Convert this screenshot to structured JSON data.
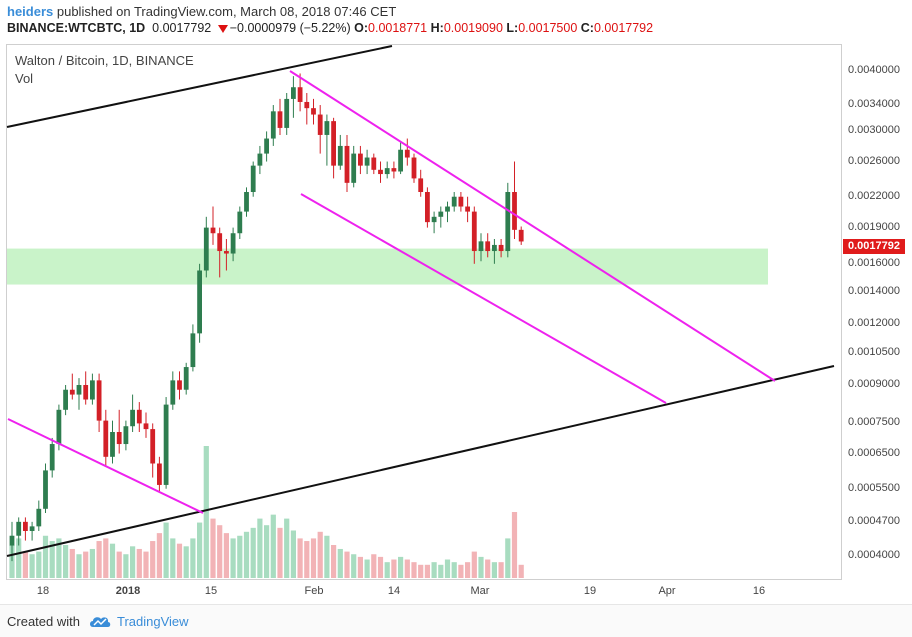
{
  "header": {
    "user": "heiders",
    "published_text": " published on TradingView.com, March 08, 2018 07:46 CET",
    "symbol": "BINANCE:WTCBTC, 1D",
    "price": "0.0017792",
    "change": "−0.0000979 (−5.22%)",
    "o_label": "O:",
    "o_value": "0.0018771",
    "h_label": "H:",
    "h_value": "0.0019090",
    "l_label": "L:",
    "l_value": "0.0017500",
    "c_label": "C:",
    "c_value": "0.0017792"
  },
  "legend": {
    "title": "Walton / Bitcoin, 1D, BINANCE",
    "vol": "Vol"
  },
  "price_tag": "0.0017792",
  "y_axis": [
    "0.0040000",
    "0.0034000",
    "0.0030000",
    "0.0026000",
    "0.0022000",
    "0.0019000",
    "0.0016000",
    "0.0014000",
    "0.0012000",
    "0.0010500",
    "0.0009000",
    "0.0007500",
    "0.0006500",
    "0.0005500",
    "0.0004700",
    "0.0004000"
  ],
  "x_axis": [
    {
      "label": "18",
      "bold": false
    },
    {
      "label": "2018",
      "bold": true
    },
    {
      "label": "15",
      "bold": false
    },
    {
      "label": "Feb",
      "bold": false
    },
    {
      "label": "14",
      "bold": false
    },
    {
      "label": "Mar",
      "bold": false
    },
    {
      "label": "19",
      "bold": false
    },
    {
      "label": "Apr",
      "bold": false
    },
    {
      "label": "16",
      "bold": false
    }
  ],
  "footer": {
    "created": "Created with",
    "brand": "TradingView"
  },
  "colors": {
    "up": "#2e7d4f",
    "down": "#d32027",
    "vol_up": "#a8dcc0",
    "vol_down": "#f2b3b6",
    "zone": "#c9f3c9",
    "channel": "#ee22ee",
    "trend": "#111111"
  },
  "chart_data": {
    "type": "candlestick",
    "scale": "log",
    "ylim": [
      0.00036,
      0.0045
    ],
    "candles": [
      [
        0.00042,
        0.00047,
        0.00039,
        0.00044
      ],
      [
        0.00044,
        0.00048,
        0.00042,
        0.00047
      ],
      [
        0.00047,
        0.00048,
        0.00043,
        0.00045
      ],
      [
        0.00045,
        0.00047,
        0.00043,
        0.00046
      ],
      [
        0.00046,
        0.00052,
        0.00045,
        0.0005
      ],
      [
        0.0005,
        0.00062,
        0.00049,
        0.0006
      ],
      [
        0.0006,
        0.0007,
        0.00058,
        0.00068
      ],
      [
        0.00068,
        0.00082,
        0.00066,
        0.0008
      ],
      [
        0.0008,
        0.0009,
        0.00078,
        0.00088
      ],
      [
        0.00088,
        0.00095,
        0.00084,
        0.00086
      ],
      [
        0.00086,
        0.00093,
        0.0008,
        0.0009
      ],
      [
        0.0009,
        0.00096,
        0.00082,
        0.00084
      ],
      [
        0.00084,
        0.00095,
        0.00082,
        0.00092
      ],
      [
        0.00092,
        0.00095,
        0.00072,
        0.00076
      ],
      [
        0.00076,
        0.0008,
        0.00061,
        0.00064
      ],
      [
        0.00064,
        0.00076,
        0.00062,
        0.00072
      ],
      [
        0.00072,
        0.0008,
        0.00065,
        0.00068
      ],
      [
        0.00068,
        0.00076,
        0.00066,
        0.00074
      ],
      [
        0.00074,
        0.00086,
        0.00072,
        0.0008
      ],
      [
        0.0008,
        0.00083,
        0.00072,
        0.00075
      ],
      [
        0.00075,
        0.00079,
        0.0007,
        0.00073
      ],
      [
        0.00073,
        0.00075,
        0.00058,
        0.00062
      ],
      [
        0.00062,
        0.00064,
        0.00054,
        0.00056
      ],
      [
        0.00056,
        0.00085,
        0.00055,
        0.00082
      ],
      [
        0.00082,
        0.00096,
        0.0008,
        0.00092
      ],
      [
        0.00092,
        0.00096,
        0.00084,
        0.00088
      ],
      [
        0.00088,
        0.001,
        0.00086,
        0.00098
      ],
      [
        0.00098,
        0.0012,
        0.00096,
        0.00115
      ],
      [
        0.00115,
        0.0016,
        0.0011,
        0.00155
      ],
      [
        0.00155,
        0.002,
        0.0015,
        0.0019
      ],
      [
        0.0019,
        0.0021,
        0.00175,
        0.00185
      ],
      [
        0.00185,
        0.0019,
        0.0015,
        0.0017
      ],
      [
        0.0017,
        0.0018,
        0.00155,
        0.00168
      ],
      [
        0.00168,
        0.0019,
        0.00162,
        0.00185
      ],
      [
        0.00185,
        0.0021,
        0.0018,
        0.00205
      ],
      [
        0.00205,
        0.0023,
        0.002,
        0.00225
      ],
      [
        0.00225,
        0.0026,
        0.0022,
        0.00255
      ],
      [
        0.00255,
        0.0028,
        0.00245,
        0.0027
      ],
      [
        0.0027,
        0.003,
        0.0026,
        0.0029
      ],
      [
        0.0029,
        0.0034,
        0.0028,
        0.0033
      ],
      [
        0.0033,
        0.0035,
        0.00295,
        0.00305
      ],
      [
        0.00305,
        0.0036,
        0.00295,
        0.0035
      ],
      [
        0.0035,
        0.0039,
        0.0032,
        0.0037
      ],
      [
        0.0037,
        0.00395,
        0.0033,
        0.00345
      ],
      [
        0.00345,
        0.0036,
        0.0031,
        0.00335
      ],
      [
        0.00335,
        0.0035,
        0.0031,
        0.00325
      ],
      [
        0.00325,
        0.0034,
        0.0027,
        0.00295
      ],
      [
        0.00295,
        0.00325,
        0.00255,
        0.00315
      ],
      [
        0.00315,
        0.0032,
        0.0024,
        0.00255
      ],
      [
        0.00255,
        0.00295,
        0.0025,
        0.0028
      ],
      [
        0.0028,
        0.00295,
        0.00225,
        0.00235
      ],
      [
        0.00235,
        0.0028,
        0.0023,
        0.0027
      ],
      [
        0.0027,
        0.0028,
        0.00245,
        0.00255
      ],
      [
        0.00255,
        0.00275,
        0.00245,
        0.00265
      ],
      [
        0.00265,
        0.0027,
        0.00245,
        0.0025
      ],
      [
        0.0025,
        0.0026,
        0.00235,
        0.00245
      ],
      [
        0.00245,
        0.0026,
        0.0024,
        0.00252
      ],
      [
        0.00252,
        0.0026,
        0.0024,
        0.00248
      ],
      [
        0.00248,
        0.00285,
        0.00245,
        0.00275
      ],
      [
        0.00275,
        0.0029,
        0.00255,
        0.00265
      ],
      [
        0.00265,
        0.0027,
        0.00235,
        0.0024
      ],
      [
        0.0024,
        0.0025,
        0.0022,
        0.00225
      ],
      [
        0.00225,
        0.0023,
        0.0019,
        0.00195
      ],
      [
        0.00195,
        0.00205,
        0.00185,
        0.002
      ],
      [
        0.002,
        0.0021,
        0.0019,
        0.00205
      ],
      [
        0.00205,
        0.00215,
        0.00195,
        0.0021
      ],
      [
        0.0021,
        0.00225,
        0.00205,
        0.0022
      ],
      [
        0.0022,
        0.00225,
        0.00205,
        0.0021
      ],
      [
        0.0021,
        0.0022,
        0.00195,
        0.00205
      ],
      [
        0.00205,
        0.0021,
        0.0016,
        0.0017
      ],
      [
        0.0017,
        0.00185,
        0.00162,
        0.00178
      ],
      [
        0.00178,
        0.00185,
        0.00165,
        0.0017
      ],
      [
        0.0017,
        0.0018,
        0.0016,
        0.00175
      ],
      [
        0.00175,
        0.0018,
        0.00165,
        0.0017
      ],
      [
        0.0017,
        0.00235,
        0.00165,
        0.00225
      ],
      [
        0.00225,
        0.0026,
        0.0018,
        0.00188
      ],
      [
        0.00188,
        0.00191,
        0.00175,
        0.001779
      ]
    ],
    "volume": [
      0.25,
      0.3,
      0.2,
      0.18,
      0.2,
      0.32,
      0.28,
      0.3,
      0.25,
      0.22,
      0.18,
      0.2,
      0.22,
      0.28,
      0.3,
      0.26,
      0.2,
      0.18,
      0.24,
      0.22,
      0.2,
      0.28,
      0.34,
      0.42,
      0.3,
      0.26,
      0.24,
      0.3,
      0.42,
      1.0,
      0.45,
      0.4,
      0.34,
      0.3,
      0.32,
      0.35,
      0.38,
      0.45,
      0.4,
      0.48,
      0.38,
      0.45,
      0.36,
      0.3,
      0.28,
      0.3,
      0.35,
      0.32,
      0.25,
      0.22,
      0.2,
      0.18,
      0.16,
      0.14,
      0.18,
      0.16,
      0.12,
      0.14,
      0.16,
      0.14,
      0.12,
      0.1,
      0.1,
      0.12,
      0.1,
      0.14,
      0.12,
      0.1,
      0.12,
      0.2,
      0.16,
      0.14,
      0.12,
      0.12,
      0.3,
      0.5,
      0.1
    ]
  }
}
